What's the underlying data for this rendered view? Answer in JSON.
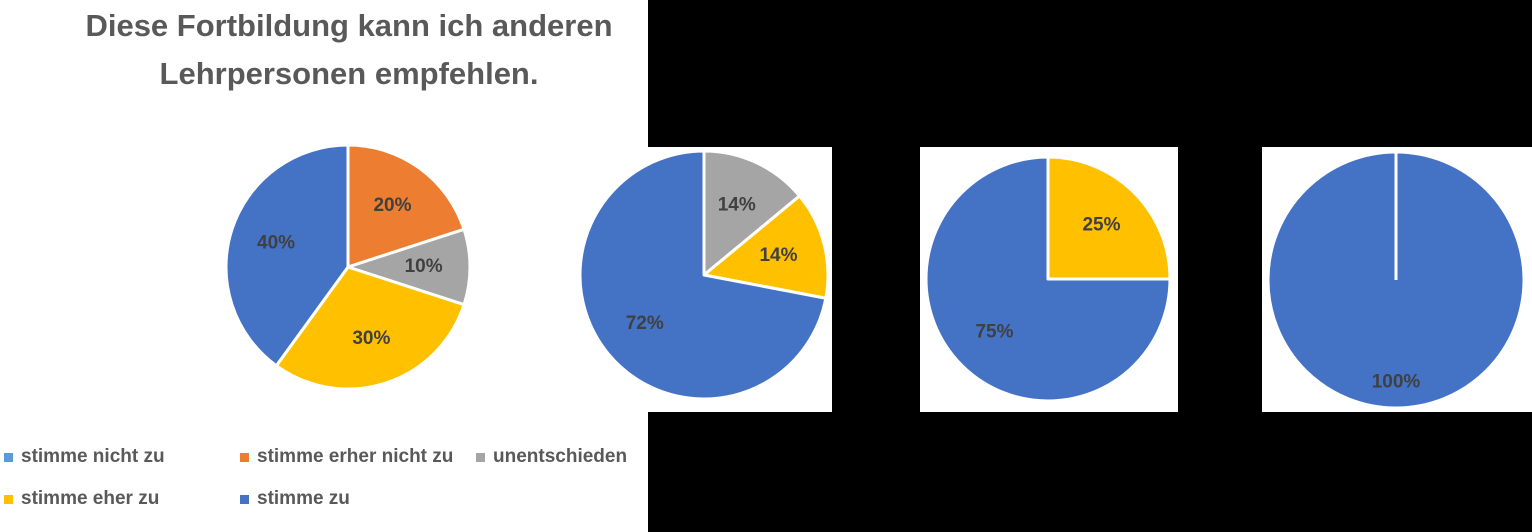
{
  "title_lines": [
    "Diese Fortbildung kann ich anderen",
    "Lehrpersonen empfehlen."
  ],
  "legend": [
    {
      "label": "stimme nicht zu",
      "color": "#5b9bd5"
    },
    {
      "label": "stimme erher nicht zu",
      "color": "#ed7d31"
    },
    {
      "label": "unentschieden",
      "color": "#a5a5a5"
    },
    {
      "label": "stimme eher zu",
      "color": "#ffc000"
    },
    {
      "label": "stimme zu",
      "color": "#4472c4"
    }
  ],
  "chart_data": [
    {
      "type": "pie",
      "title": "Diese Fortbildung kann ich anderen Lehrpersonen empfehlen.",
      "categories": [
        "stimme nicht zu",
        "stimme erher nicht zu",
        "unentschieden",
        "stimme eher zu",
        "stimme zu"
      ],
      "values": [
        0,
        20,
        10,
        30,
        40
      ],
      "data_labels": [
        "",
        "20%",
        "10%",
        "30%",
        "40%"
      ],
      "legend_position": "bottom"
    },
    {
      "type": "pie",
      "categories": [
        "stimme nicht zu",
        "stimme erher nicht zu",
        "unentschieden",
        "stimme eher zu",
        "stimme zu"
      ],
      "values": [
        0,
        0,
        14,
        14,
        72
      ],
      "data_labels": [
        "",
        "",
        "14%",
        "14%",
        "72%"
      ]
    },
    {
      "type": "pie",
      "categories": [
        "stimme nicht zu",
        "stimme erher nicht zu",
        "unentschieden",
        "stimme eher zu",
        "stimme zu"
      ],
      "values": [
        0,
        0,
        0,
        25,
        75
      ],
      "data_labels": [
        "",
        "",
        "",
        "25%",
        "75%"
      ]
    },
    {
      "type": "pie",
      "categories": [
        "stimme nicht zu",
        "stimme erher nicht zu",
        "unentschieden",
        "stimme eher zu",
        "stimme zu"
      ],
      "values": [
        0,
        0,
        0,
        0,
        100
      ],
      "data_labels": [
        "",
        "",
        "",
        "",
        "100%"
      ]
    }
  ]
}
